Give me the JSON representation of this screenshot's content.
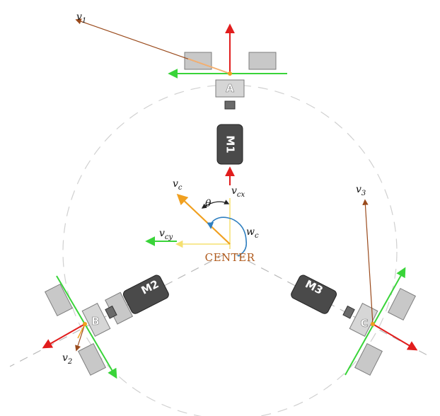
{
  "diagram": {
    "center_label": "CENTER",
    "theta_label": "θ",
    "velocity_labels": {
      "v1": {
        "base": "v",
        "sub": "1"
      },
      "v2": {
        "base": "v",
        "sub": "2"
      },
      "v3": {
        "base": "v",
        "sub": "3"
      },
      "vc": {
        "base": "v",
        "sub": "c"
      },
      "vcx": {
        "base": "v",
        "sub": "cx"
      },
      "vcy": {
        "base": "v",
        "sub": "cy"
      },
      "wc": {
        "base": "w",
        "sub": "c"
      }
    },
    "wheels": [
      {
        "letter": "A",
        "motor": "M1"
      },
      {
        "letter": "B",
        "motor": "M2"
      },
      {
        "letter": "C",
        "motor": "M3"
      }
    ]
  },
  "colors": {
    "red_vector": "#e11d1d",
    "green_vector": "#39d439",
    "brown_vector": "#9a4a1c",
    "orange_vector": "#f0a020",
    "yellow_vector": "#f5e070",
    "blue_arc": "#2f7fc0",
    "motor_body": "#4a4a4a",
    "wheel_gray": "#c8c8c8",
    "center_text": "#b05a1c"
  }
}
